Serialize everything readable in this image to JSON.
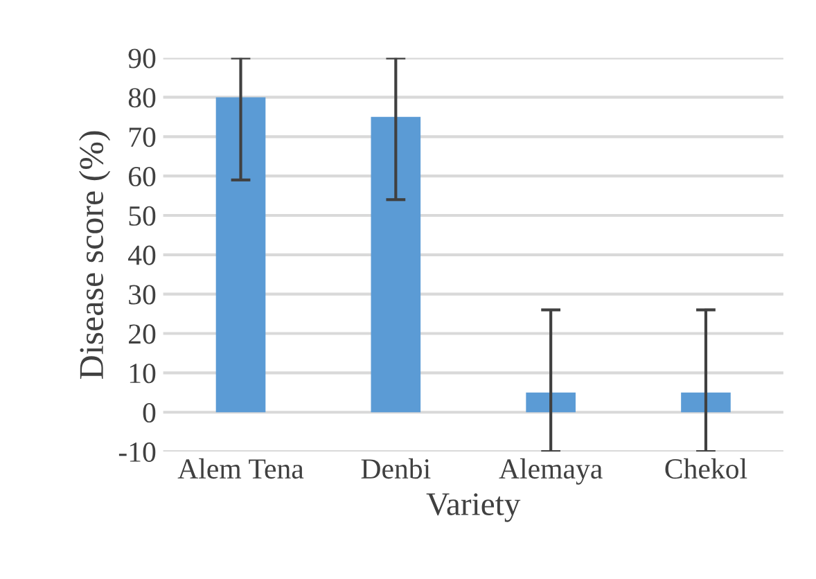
{
  "chart_data": {
    "type": "bar",
    "xlabel": "Variety",
    "ylabel": "Disease score (%)",
    "categories": [
      "Alem Tena",
      "Denbi",
      "Alemaya",
      "Chekol"
    ],
    "values": [
      80,
      75,
      5,
      5
    ],
    "errors": [
      [
        59,
        90
      ],
      [
        54,
        90
      ],
      [
        -10,
        26
      ],
      [
        -10,
        26
      ]
    ],
    "color": "#5b9bd5",
    "ylim": [
      -10,
      90
    ],
    "yticks": [
      -10,
      0,
      10,
      20,
      30,
      40,
      50,
      60,
      70,
      80,
      90
    ],
    "grid": "y",
    "legend": false
  }
}
